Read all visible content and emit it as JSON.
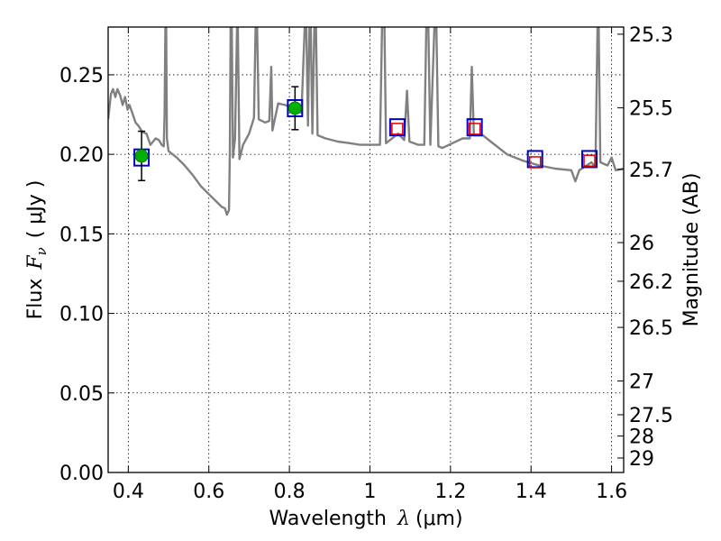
{
  "chart_data": {
    "type": "scatter",
    "title": "",
    "xlabel": {
      "text": "Wavelength",
      "symbol": "λ",
      "unit": "(μm)"
    },
    "ylabel": {
      "text": "Flux",
      "symbol": "F",
      "subscript": "ν",
      "unit": "( μJy )"
    },
    "y2label": "Magnitude (AB)",
    "xlim": [
      0.35,
      1.63
    ],
    "ylim": [
      0.0,
      0.28
    ],
    "grid": true,
    "x_ticks": [
      0.4,
      0.6,
      0.8,
      1.0,
      1.2,
      1.4,
      1.6
    ],
    "x_tick_labels": [
      "0.4",
      "0.6",
      "0.8",
      "1",
      "1.2",
      "1.4",
      "1.6"
    ],
    "y_ticks": [
      0.0,
      0.05,
      0.1,
      0.15,
      0.2,
      0.25
    ],
    "y_tick_labels": [
      "0.00",
      "0.05",
      "0.10",
      "0.15",
      "0.20",
      "0.25"
    ],
    "y2_ticks": [
      {
        "label": "25.3",
        "flux": 0.2755
      },
      {
        "label": "25.5",
        "flux": 0.2292
      },
      {
        "label": "25.7",
        "flux": 0.1905
      },
      {
        "label": "26",
        "flux": 0.1445
      },
      {
        "label": "26.2",
        "flux": 0.1202
      },
      {
        "label": "26.5",
        "flux": 0.0912
      },
      {
        "label": "27",
        "flux": 0.0575
      },
      {
        "label": "27.5",
        "flux": 0.0363
      },
      {
        "label": "28",
        "flux": 0.0229
      },
      {
        "label": "29",
        "flux": 0.0091
      }
    ],
    "colors": {
      "sed_line": "#808080",
      "observed_fill": "#00b000",
      "observed_edge": "#008000",
      "model_square_big": "#0000cc",
      "model_square_small": "#dd0000",
      "errorbar": "#000000"
    },
    "series": [
      {
        "kind": "model_sed_line",
        "points": [
          [
            0.35,
            0.222
          ],
          [
            0.357,
            0.238
          ],
          [
            0.362,
            0.241
          ],
          [
            0.368,
            0.236
          ],
          [
            0.373,
            0.241
          ],
          [
            0.38,
            0.237
          ],
          [
            0.386,
            0.231
          ],
          [
            0.392,
            0.236
          ],
          [
            0.398,
            0.228
          ],
          [
            0.403,
            0.231
          ],
          [
            0.41,
            0.226
          ],
          [
            0.418,
            0.22
          ],
          [
            0.425,
            0.218
          ],
          [
            0.435,
            0.214
          ],
          [
            0.445,
            0.213
          ],
          [
            0.455,
            0.206
          ],
          [
            0.468,
            0.21
          ],
          [
            0.476,
            0.209
          ],
          [
            0.483,
            0.206
          ],
          [
            0.488,
            0.205
          ],
          [
            0.49,
            0.225
          ],
          [
            0.492,
            0.28
          ],
          [
            0.494,
            0.28
          ],
          [
            0.496,
            0.21
          ],
          [
            0.5,
            0.202
          ],
          [
            0.52,
            0.198
          ],
          [
            0.54,
            0.193
          ],
          [
            0.56,
            0.187
          ],
          [
            0.58,
            0.18
          ],
          [
            0.6,
            0.175
          ],
          [
            0.62,
            0.17
          ],
          [
            0.632,
            0.167
          ],
          [
            0.64,
            0.166
          ],
          [
            0.645,
            0.162
          ],
          [
            0.65,
            0.165
          ],
          [
            0.652,
            0.2
          ],
          [
            0.654,
            0.28
          ],
          [
            0.657,
            0.28
          ],
          [
            0.66,
            0.198
          ],
          [
            0.665,
            0.21
          ],
          [
            0.67,
            0.28
          ],
          [
            0.672,
            0.28
          ],
          [
            0.676,
            0.197
          ],
          [
            0.685,
            0.206
          ],
          [
            0.7,
            0.213
          ],
          [
            0.712,
            0.223
          ],
          [
            0.716,
            0.28
          ],
          [
            0.72,
            0.28
          ],
          [
            0.724,
            0.222
          ],
          [
            0.74,
            0.22
          ],
          [
            0.75,
            0.221
          ],
          [
            0.755,
            0.255
          ],
          [
            0.758,
            0.215
          ],
          [
            0.772,
            0.232
          ],
          [
            0.79,
            0.231
          ],
          [
            0.81,
            0.229
          ],
          [
            0.83,
            0.226
          ],
          [
            0.838,
            0.28
          ],
          [
            0.842,
            0.28
          ],
          [
            0.846,
            0.218
          ],
          [
            0.85,
            0.28
          ],
          [
            0.853,
            0.28
          ],
          [
            0.857,
            0.213
          ],
          [
            0.862,
            0.28
          ],
          [
            0.866,
            0.28
          ],
          [
            0.87,
            0.212
          ],
          [
            0.89,
            0.21
          ],
          [
            0.92,
            0.208
          ],
          [
            0.95,
            0.207
          ],
          [
            0.975,
            0.206
          ],
          [
            1.0,
            0.206
          ],
          [
            1.025,
            0.206
          ],
          [
            1.03,
            0.28
          ],
          [
            1.036,
            0.28
          ],
          [
            1.04,
            0.207
          ],
          [
            1.07,
            0.213
          ],
          [
            1.085,
            0.209
          ],
          [
            1.092,
            0.24
          ],
          [
            1.098,
            0.208
          ],
          [
            1.12,
            0.206
          ],
          [
            1.135,
            0.206
          ],
          [
            1.14,
            0.28
          ],
          [
            1.145,
            0.28
          ],
          [
            1.15,
            0.206
          ],
          [
            1.16,
            0.28
          ],
          [
            1.165,
            0.28
          ],
          [
            1.17,
            0.205
          ],
          [
            1.18,
            0.204
          ],
          [
            1.23,
            0.21
          ],
          [
            1.248,
            0.21
          ],
          [
            1.253,
            0.255
          ],
          [
            1.258,
            0.212
          ],
          [
            1.28,
            0.212
          ],
          [
            1.3,
            0.208
          ],
          [
            1.34,
            0.2
          ],
          [
            1.38,
            0.196
          ],
          [
            1.42,
            0.193
          ],
          [
            1.46,
            0.191
          ],
          [
            1.5,
            0.19
          ],
          [
            1.51,
            0.183
          ],
          [
            1.52,
            0.19
          ],
          [
            1.55,
            0.195
          ],
          [
            1.56,
            0.192
          ],
          [
            1.565,
            0.28
          ],
          [
            1.568,
            0.28
          ],
          [
            1.572,
            0.195
          ],
          [
            1.59,
            0.193
          ],
          [
            1.6,
            0.198
          ],
          [
            1.61,
            0.19
          ],
          [
            1.63,
            0.191
          ]
        ]
      },
      {
        "kind": "observed_flux",
        "shape": "circle",
        "points": [
          {
            "x": 0.433,
            "y": 0.199,
            "yerr": 0.0155
          },
          {
            "x": 0.814,
            "y": 0.229,
            "yerr": 0.0135
          }
        ]
      },
      {
        "kind": "model_photometry_large",
        "shape": "square",
        "points": [
          {
            "x": 0.433,
            "y": 0.198
          },
          {
            "x": 0.814,
            "y": 0.229
          },
          {
            "x": 1.068,
            "y": 0.217
          },
          {
            "x": 1.26,
            "y": 0.217
          },
          {
            "x": 1.41,
            "y": 0.197
          },
          {
            "x": 1.545,
            "y": 0.197
          }
        ]
      },
      {
        "kind": "model_photometry_small",
        "shape": "square",
        "points": [
          {
            "x": 1.068,
            "y": 0.216
          },
          {
            "x": 1.26,
            "y": 0.216
          },
          {
            "x": 1.41,
            "y": 0.195
          },
          {
            "x": 1.545,
            "y": 0.196
          }
        ]
      }
    ]
  }
}
